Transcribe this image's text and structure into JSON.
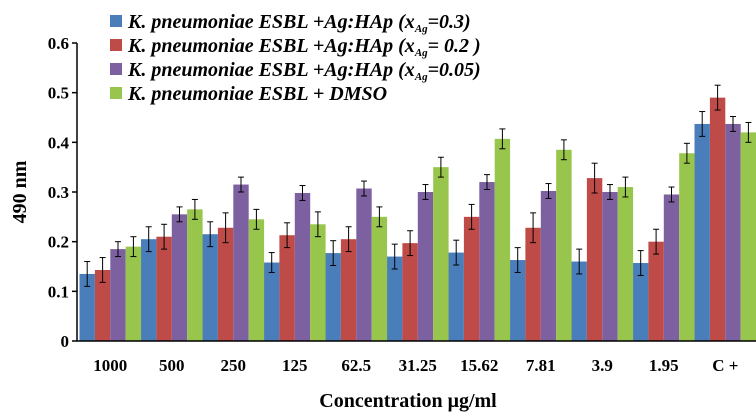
{
  "chart_data": {
    "type": "bar",
    "title": "",
    "xlabel": "Concentration μg/ml",
    "ylabel": "490 nm",
    "ylim": [
      0,
      0.6
    ],
    "yticks": [
      "0",
      "0.1",
      "0.2",
      "0.3",
      "0.4",
      "0.5",
      "0.6"
    ],
    "grid": false,
    "legend_position": "top-left",
    "categories": [
      "1000",
      "500",
      "250",
      "125",
      "62.5",
      "31.25",
      "15.62",
      "7.81",
      "3.9",
      "1.95",
      "C +"
    ],
    "series": [
      {
        "name": "K. pneumoniae ESBL +Ag:HAp (xAg=0.3)",
        "legend": {
          "main": "K. pneumoniae ESBL +Ag:HAp (x",
          "sub": "Ag",
          "tail": "=0.3)"
        },
        "color": "#4a7ebb",
        "values": [
          0.135,
          0.205,
          0.215,
          0.158,
          0.177,
          0.17,
          0.178,
          0.163,
          0.16,
          0.157,
          0.437
        ],
        "errors": [
          0.025,
          0.025,
          0.025,
          0.02,
          0.025,
          0.025,
          0.025,
          0.025,
          0.025,
          0.025,
          0.025
        ]
      },
      {
        "name": "K. pneumoniae ESBL +Ag:HAp (xAg= 0.2 )",
        "legend": {
          "main": "K. pneumoniae ESBL +Ag:HAp (x",
          "sub": "Ag",
          "tail": "= 0.2 )"
        },
        "color": "#be4b48",
        "values": [
          0.143,
          0.21,
          0.228,
          0.213,
          0.205,
          0.197,
          0.25,
          0.228,
          0.328,
          0.2,
          0.49
        ],
        "errors": [
          0.025,
          0.025,
          0.03,
          0.025,
          0.025,
          0.025,
          0.025,
          0.03,
          0.03,
          0.025,
          0.025
        ]
      },
      {
        "name": "K. pneumoniae ESBL +Ag:HAp (xAg=0.05)",
        "legend": {
          "main": "K. pneumoniae ESBL +Ag:HAp (x",
          "sub": "Ag",
          "tail": "=0.05)"
        },
        "color": "#7d60a0",
        "values": [
          0.185,
          0.255,
          0.315,
          0.298,
          0.307,
          0.3,
          0.32,
          0.302,
          0.3,
          0.295,
          0.437
        ],
        "errors": [
          0.015,
          0.015,
          0.015,
          0.015,
          0.015,
          0.015,
          0.015,
          0.015,
          0.015,
          0.015,
          0.015
        ]
      },
      {
        "name": "K. pneumoniae ESBL + DMSO",
        "legend": {
          "main": "K. pneumoniae ESBL + DMSO",
          "sub": "",
          "tail": ""
        },
        "color": "#98c54b",
        "values": [
          0.19,
          0.265,
          0.245,
          0.235,
          0.25,
          0.35,
          0.407,
          0.385,
          0.31,
          0.378,
          0.42
        ],
        "errors": [
          0.02,
          0.02,
          0.02,
          0.025,
          0.02,
          0.02,
          0.02,
          0.02,
          0.02,
          0.02,
          0.02
        ]
      }
    ]
  }
}
